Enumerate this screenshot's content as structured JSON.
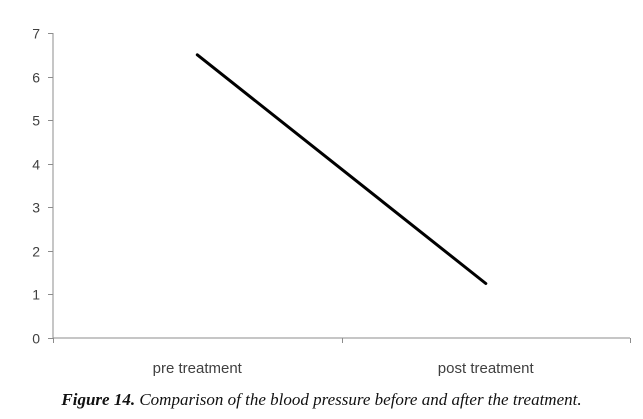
{
  "chart_data": {
    "type": "line",
    "categories": [
      "pre treatment",
      "post treatment"
    ],
    "series": [
      {
        "values": [
          6.5,
          1.25
        ]
      }
    ],
    "ylim": [
      0,
      7
    ],
    "yticks": [
      "0",
      "1",
      "2",
      "3",
      "4",
      "5",
      "6",
      "7"
    ],
    "grid": false,
    "legend": "none",
    "line_color": "#000000"
  },
  "caption": {
    "figure_number": "Figure 14.",
    "text": " Comparison of the blood pressure before and after the treatment."
  }
}
